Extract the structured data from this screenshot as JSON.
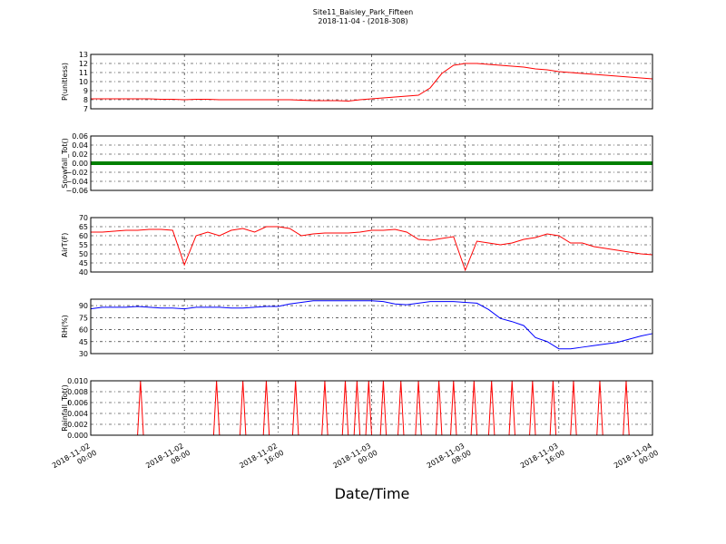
{
  "chart_data": {
    "type": "line",
    "title": "Site11_Baisley_Park_Fifteen",
    "subtitle": "2018-11-04 - (2018-308)",
    "xlabel": "Date/Time",
    "grid": true,
    "xlim": [
      "2018-11-02 00:00",
      "2018-11-04 00:00"
    ],
    "xticks": [
      "2018-11-02 00:00",
      "2018-11-02 08:00",
      "2018-11-02 16:00",
      "2018-11-03 00:00",
      "2018-11-03 08:00",
      "2018-11-03 16:00",
      "2018-11-04 00:00"
    ],
    "x": [
      "2018-11-02 00:00",
      "2018-11-02 01:00",
      "2018-11-02 02:00",
      "2018-11-02 03:00",
      "2018-11-02 04:00",
      "2018-11-02 05:00",
      "2018-11-02 06:00",
      "2018-11-02 07:00",
      "2018-11-02 08:00",
      "2018-11-02 09:00",
      "2018-11-02 10:00",
      "2018-11-02 11:00",
      "2018-11-02 12:00",
      "2018-11-02 13:00",
      "2018-11-02 14:00",
      "2018-11-02 15:00",
      "2018-11-02 16:00",
      "2018-11-02 17:00",
      "2018-11-02 18:00",
      "2018-11-02 19:00",
      "2018-11-02 20:00",
      "2018-11-02 21:00",
      "2018-11-02 22:00",
      "2018-11-02 23:00",
      "2018-11-03 00:00",
      "2018-11-03 01:00",
      "2018-11-03 02:00",
      "2018-11-03 03:00",
      "2018-11-03 04:00",
      "2018-11-03 05:00",
      "2018-11-03 06:00",
      "2018-11-03 07:00",
      "2018-11-03 08:00",
      "2018-11-03 09:00",
      "2018-11-03 10:00",
      "2018-11-03 11:00",
      "2018-11-03 12:00",
      "2018-11-03 13:00",
      "2018-11-03 14:00",
      "2018-11-03 15:00",
      "2018-11-03 16:00",
      "2018-11-03 17:00",
      "2018-11-03 18:00",
      "2018-11-03 19:00",
      "2018-11-03 20:00",
      "2018-11-03 21:00",
      "2018-11-03 22:00",
      "2018-11-03 23:00",
      "2018-11-04 00:00"
    ],
    "panels": [
      {
        "ylabel": "P(unitless)",
        "ylim": [
          7,
          13
        ],
        "yticks": [
          7,
          8,
          9,
          10,
          11,
          12,
          13
        ],
        "series": [
          {
            "color": "#ff0000",
            "values": [
              8.1,
              8.1,
              8.1,
              8.1,
              8.1,
              8.1,
              8.05,
              8.05,
              8.0,
              8.05,
              8.05,
              8.0,
              8.0,
              8.0,
              8.0,
              8.0,
              8.0,
              8.0,
              7.95,
              7.9,
              7.9,
              7.9,
              7.85,
              8.0,
              8.1,
              8.2,
              8.3,
              8.4,
              8.5,
              9.3,
              10.9,
              11.8,
              12.0,
              12.0,
              11.9,
              11.8,
              11.7,
              11.6,
              11.4,
              11.3,
              11.1,
              11.0,
              10.9,
              10.8,
              10.7,
              10.6,
              10.5,
              10.4,
              10.3
            ]
          }
        ]
      },
      {
        "ylabel": "Snowfall_Tot()",
        "ylim": [
          -0.06,
          0.06
        ],
        "yticks": [
          {
            "value": -0.06,
            "label": "−0.06"
          },
          {
            "value": -0.04,
            "label": "−0.04"
          },
          {
            "value": -0.02,
            "label": "−0.02"
          },
          {
            "value": 0,
            "label": "0.00"
          },
          {
            "value": 0.02,
            "label": "0.02"
          },
          {
            "value": 0.04,
            "label": "0.04"
          },
          {
            "value": 0.06,
            "label": "0.06"
          }
        ],
        "series": [
          {
            "color": "#008000",
            "values": [
              0,
              0,
              0,
              0,
              0,
              0,
              0,
              0,
              0,
              0,
              0,
              0,
              0,
              0,
              0,
              0,
              0,
              0,
              0,
              0,
              0,
              0,
              0,
              0,
              0,
              0,
              0,
              0,
              0,
              0,
              0,
              0,
              0,
              0,
              0,
              0,
              0,
              0,
              0,
              0,
              0,
              0,
              0,
              0,
              0,
              0,
              0,
              0,
              0
            ]
          }
        ]
      },
      {
        "ylabel": "AirT(F)",
        "ylim": [
          40,
          70
        ],
        "yticks": [
          40,
          45,
          50,
          55,
          60,
          65,
          70
        ],
        "series": [
          {
            "color": "#ff0000",
            "values": [
              62,
              62,
              62.5,
              63,
              63,
              63.5,
              63.5,
              63,
              44,
              60,
              62,
              60,
              63,
              64,
              62,
              65,
              65,
              64,
              60,
              61,
              61.5,
              61.5,
              61.5,
              62,
              63,
              63,
              63.5,
              62,
              58,
              57.5,
              58.5,
              59.5,
              41,
              57,
              56,
              55,
              56,
              58,
              59,
              61,
              60,
              56,
              56,
              54,
              53,
              52,
              51,
              50,
              49.5
            ]
          }
        ]
      },
      {
        "ylabel": "RH(%)",
        "ylim": [
          30,
          98
        ],
        "yticks": [
          30,
          45,
          60,
          75,
          90
        ],
        "series": [
          {
            "color": "#0000ff",
            "values": [
              86,
              88,
              88,
              88,
              89,
              88,
              87,
              87,
              86,
              88,
              88,
              88,
              87,
              87,
              88,
              89,
              89,
              92,
              94,
              96,
              96,
              96,
              96,
              96,
              96,
              95,
              92,
              91,
              93,
              95,
              95,
              95,
              94,
              93,
              85,
              74,
              70,
              65,
              50,
              45,
              36,
              36,
              38,
              40,
              42,
              44,
              48,
              52,
              55
            ]
          }
        ]
      },
      {
        "ylabel": "Rainfall_Tot()",
        "ylim": [
          0,
          0.01
        ],
        "yticks": [
          {
            "value": 0,
            "label": "0.000"
          },
          {
            "value": 0.002,
            "label": "0.002"
          },
          {
            "value": 0.004,
            "label": "0.004"
          },
          {
            "value": 0.006,
            "label": "0.006"
          },
          {
            "value": 0.008,
            "label": "0.008"
          },
          {
            "value": 0.01,
            "label": "0.010"
          }
        ],
        "x": [
          "2018-11-02 00:00",
          "2018-11-02 04:00",
          "2018-11-02 04:15",
          "2018-11-02 04:30",
          "2018-11-02 10:30",
          "2018-11-02 10:45",
          "2018-11-02 11:00",
          "2018-11-02 12:45",
          "2018-11-02 13:00",
          "2018-11-02 13:15",
          "2018-11-02 14:45",
          "2018-11-02 15:00",
          "2018-11-02 15:15",
          "2018-11-02 17:15",
          "2018-11-02 17:30",
          "2018-11-02 17:45",
          "2018-11-02 19:45",
          "2018-11-02 20:00",
          "2018-11-02 20:15",
          "2018-11-02 21:30",
          "2018-11-02 21:45",
          "2018-11-02 22:00",
          "2018-11-02 22:30",
          "2018-11-02 22:45",
          "2018-11-02 23:00",
          "2018-11-02 23:30",
          "2018-11-02 23:45",
          "2018-11-03 00:00",
          "2018-11-03 00:45",
          "2018-11-03 01:00",
          "2018-11-03 01:15",
          "2018-11-03 02:15",
          "2018-11-03 02:30",
          "2018-11-03 02:45",
          "2018-11-03 03:45",
          "2018-11-03 04:00",
          "2018-11-03 04:15",
          "2018-11-03 05:30",
          "2018-11-03 05:45",
          "2018-11-03 06:00",
          "2018-11-03 06:45",
          "2018-11-03 07:00",
          "2018-11-03 07:15",
          "2018-11-03 08:30",
          "2018-11-03 08:45",
          "2018-11-03 09:00",
          "2018-11-03 10:00",
          "2018-11-03 10:15",
          "2018-11-03 10:30",
          "2018-11-03 11:45",
          "2018-11-03 12:00",
          "2018-11-03 12:15",
          "2018-11-03 13:30",
          "2018-11-03 13:45",
          "2018-11-03 14:00",
          "2018-11-03 15:15",
          "2018-11-03 15:30",
          "2018-11-03 15:45",
          "2018-11-03 17:00",
          "2018-11-03 17:15",
          "2018-11-03 17:30",
          "2018-11-03 19:15",
          "2018-11-03 19:30",
          "2018-11-03 19:45",
          "2018-11-03 21:30",
          "2018-11-03 21:45",
          "2018-11-03 22:00",
          "2018-11-04 00:00"
        ],
        "series": [
          {
            "color": "#ff0000",
            "values": [
              0,
              0,
              0.01,
              0,
              0,
              0.01,
              0,
              0,
              0.01,
              0,
              0,
              0.01,
              0,
              0,
              0.01,
              0,
              0,
              0.01,
              0,
              0,
              0.01,
              0,
              0,
              0.01,
              0,
              0,
              0.01,
              0,
              0,
              0.01,
              0,
              0,
              0.01,
              0,
              0,
              0.01,
              0,
              0,
              0.01,
              0,
              0,
              0.01,
              0,
              0,
              0.01,
              0,
              0,
              0.01,
              0,
              0,
              0.01,
              0,
              0,
              0.01,
              0,
              0,
              0.01,
              0,
              0,
              0.01,
              0,
              0,
              0.01,
              0,
              0,
              0.01,
              0,
              0
            ]
          }
        ]
      }
    ]
  }
}
